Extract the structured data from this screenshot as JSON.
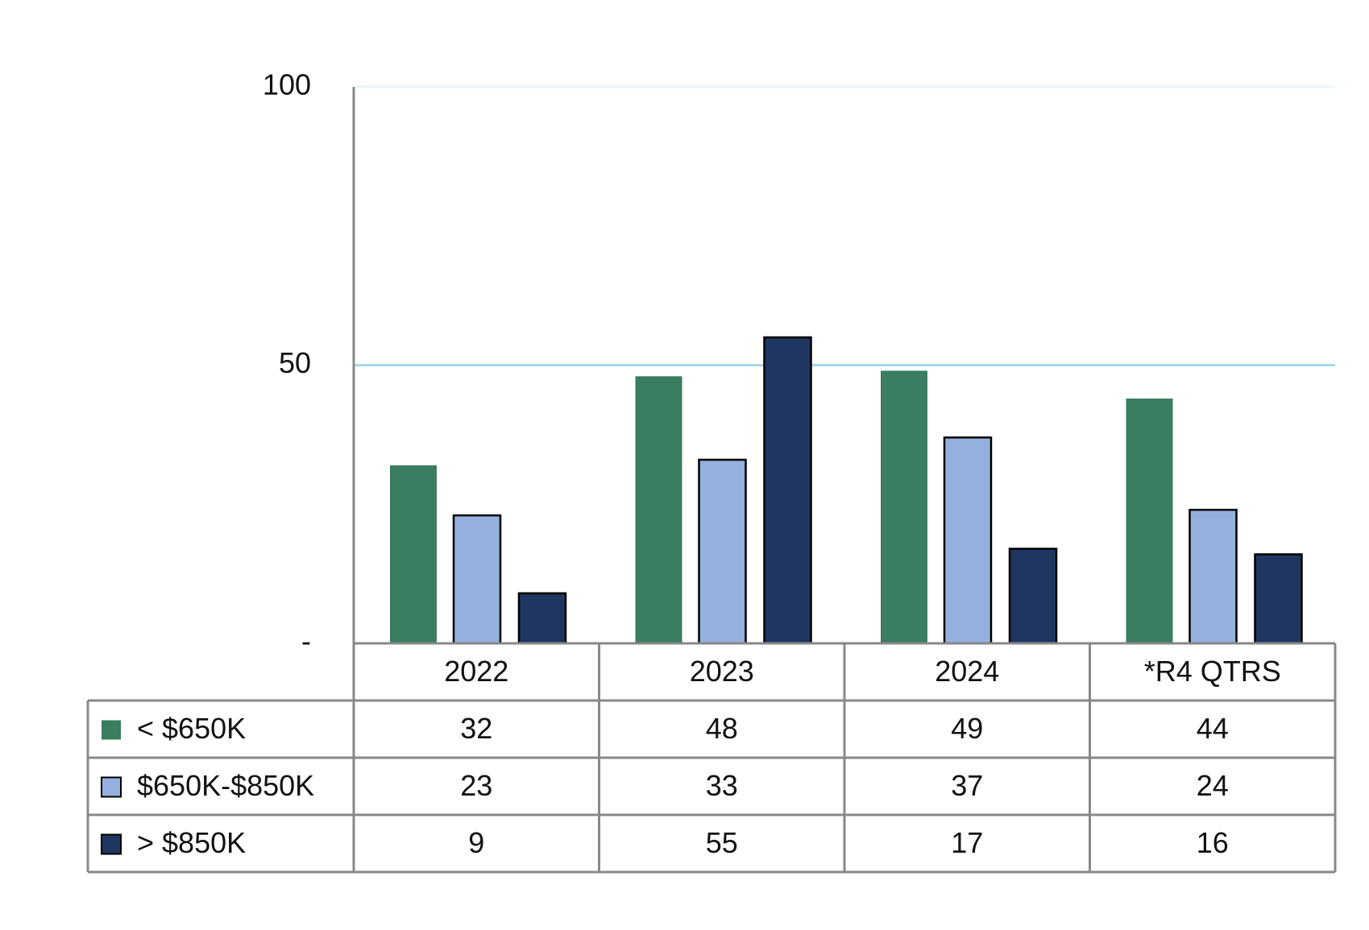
{
  "chart_data": {
    "type": "bar",
    "categories": [
      "2022",
      "2023",
      "2024",
      "*R4 QTRS"
    ],
    "series": [
      {
        "name": "< $650K",
        "color": "#3a7d60",
        "values": [
          32,
          48,
          49,
          44
        ]
      },
      {
        "name": "$650K-$850K",
        "color": "#95b0de",
        "values": [
          23,
          33,
          37,
          24
        ]
      },
      {
        "name": "> $850K",
        "color": "#1f3660",
        "values": [
          9,
          55,
          17,
          16
        ]
      }
    ],
    "ylim": [
      0,
      100
    ],
    "yticks": [
      {
        "value": 0,
        "label": "-"
      },
      50,
      100
    ],
    "grid": true,
    "grid_color": "#a8d8ea",
    "legend": "data-table"
  }
}
